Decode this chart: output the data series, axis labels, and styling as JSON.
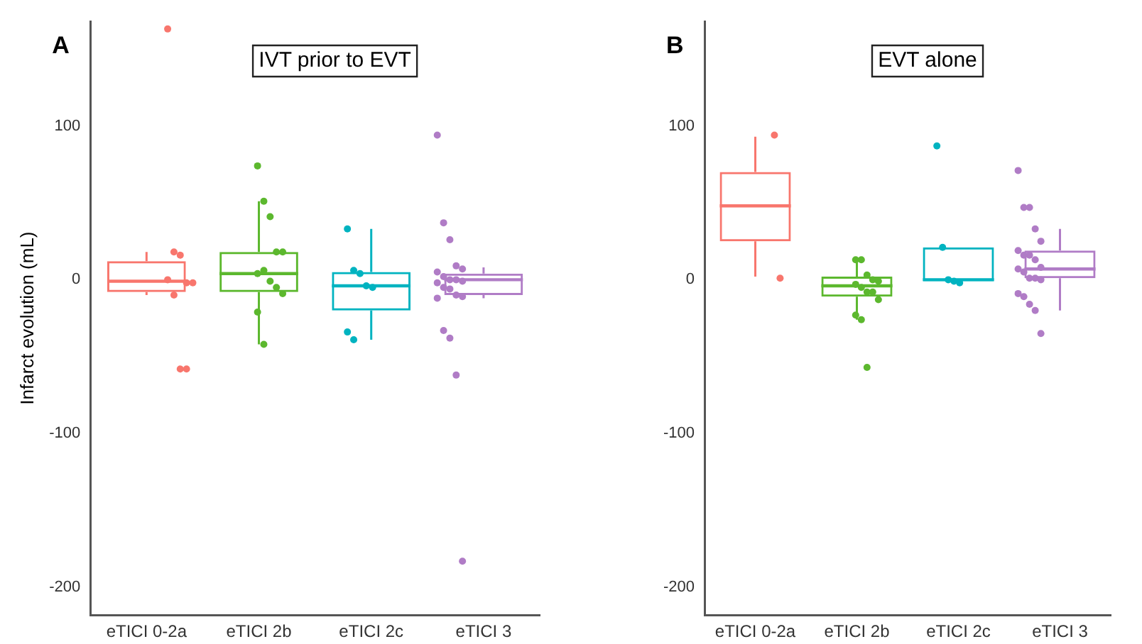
{
  "chart_data": [
    {
      "type": "box",
      "title": "IVT prior to EVT",
      "ylabel": "Infarct evolution (mL)",
      "annotations": [
        "A"
      ],
      "categories": [
        "eTICI 0-2a",
        "eTICI 2b",
        "eTICI 2c",
        "eTICI 3"
      ],
      "colors": [
        "#f8766d",
        "#5cb82e",
        "#00b3c0",
        "#b07cc6"
      ],
      "boxes": [
        {
          "low": -10,
          "q1": -8,
          "median": -1,
          "q3": 12,
          "high": 18
        },
        {
          "low": -42,
          "q1": -8,
          "median": 4,
          "q3": 18,
          "high": 51
        },
        {
          "low": -39,
          "q1": -20,
          "median": -4,
          "q3": 5,
          "high": 33
        },
        {
          "low": -12,
          "q1": -10,
          "median": 0,
          "q3": 4,
          "high": 8
        }
      ],
      "series": [
        {
          "type": "scatter",
          "color": "#f8766d",
          "x": [
            "eTICI 0-2a",
            "eTICI 0-2a",
            "eTICI 0-2a",
            "eTICI 0-2a",
            "eTICI 0-2a",
            "eTICI 0-2a",
            "eTICI 0-2a",
            "eTICI 0-2a",
            "eTICI 0-2a"
          ],
          "values": [
            163,
            18,
            16,
            -2,
            -2,
            0,
            -10,
            -58,
            -58
          ]
        },
        {
          "type": "scatter",
          "color": "#5cb82e",
          "x": [
            "eTICI 2b",
            "eTICI 2b",
            "eTICI 2b",
            "eTICI 2b",
            "eTICI 2b",
            "eTICI 2b",
            "eTICI 2b",
            "eTICI 2b",
            "eTICI 2b",
            "eTICI 2b",
            "eTICI 2b",
            "eTICI 2b"
          ],
          "values": [
            74,
            51,
            41,
            18,
            18,
            4,
            6,
            -1,
            -5,
            -9,
            -21,
            -42
          ]
        },
        {
          "type": "scatter",
          "color": "#00b3c0",
          "x": [
            "eTICI 2c",
            "eTICI 2c",
            "eTICI 2c",
            "eTICI 2c",
            "eTICI 2c",
            "eTICI 2c",
            "eTICI 2c"
          ],
          "values": [
            33,
            6,
            4,
            -4,
            -5,
            -34,
            -39
          ]
        },
        {
          "type": "scatter",
          "color": "#b07cc6",
          "x": [
            "eTICI 3",
            "eTICI 3",
            "eTICI 3",
            "eTICI 3",
            "eTICI 3",
            "eTICI 3",
            "eTICI 3",
            "eTICI 3",
            "eTICI 3",
            "eTICI 3",
            "eTICI 3",
            "eTICI 3",
            "eTICI 3",
            "eTICI 3",
            "eTICI 3",
            "eTICI 3",
            "eTICI 3",
            "eTICI 3",
            "eTICI 3",
            "eTICI 3"
          ],
          "values": [
            94,
            37,
            26,
            9,
            7,
            5,
            2,
            0,
            0,
            -1,
            -2,
            -5,
            -6,
            -10,
            -11,
            -12,
            -33,
            -38,
            -62,
            -183
          ]
        }
      ],
      "ylim": [
        -218,
        168
      ],
      "yticks": [
        -200,
        -100,
        0,
        100
      ],
      "grid": false,
      "legend": false,
      "marker": "circle"
    },
    {
      "type": "box",
      "title": "EVT alone",
      "annotations": [
        "B"
      ],
      "categories": [
        "eTICI 0-2a",
        "eTICI 2b",
        "eTICI 2c",
        "eTICI 3"
      ],
      "colors": [
        "#f8766d",
        "#5cb82e",
        "#00b3c0",
        "#b07cc6"
      ],
      "boxes": [
        {
          "low": 2,
          "q1": 25,
          "median": 48,
          "q3": 70,
          "high": 93
        },
        {
          "low": -26,
          "q1": -11,
          "median": -4,
          "q3": 2,
          "high": 13
        },
        {
          "low": -2,
          "q1": -1,
          "median": 0,
          "q3": 21,
          "high": 21
        },
        {
          "low": -20,
          "q1": 1,
          "median": 7,
          "q3": 19,
          "high": 33
        }
      ],
      "series": [
        {
          "type": "scatter",
          "color": "#f8766d",
          "x": [
            "eTICI 0-2a",
            "eTICI 0-2a"
          ],
          "values": [
            94,
            1
          ]
        },
        {
          "type": "scatter",
          "color": "#5cb82e",
          "x": [
            "eTICI 2b",
            "eTICI 2b",
            "eTICI 2b",
            "eTICI 2b",
            "eTICI 2b",
            "eTICI 2b",
            "eTICI 2b",
            "eTICI 2b",
            "eTICI 2b",
            "eTICI 2b",
            "eTICI 2b",
            "eTICI 2b",
            "eTICI 2b"
          ],
          "values": [
            13,
            13,
            3,
            0,
            -1,
            -3,
            -5,
            -8,
            -8,
            -13,
            -23,
            -26,
            -57
          ]
        },
        {
          "type": "scatter",
          "color": "#00b3c0",
          "x": [
            "eTICI 2c",
            "eTICI 2c",
            "eTICI 2c",
            "eTICI 2c",
            "eTICI 2c"
          ],
          "values": [
            87,
            21,
            0,
            -1,
            -2
          ]
        },
        {
          "type": "scatter",
          "color": "#b07cc6",
          "x": [
            "eTICI 3",
            "eTICI 3",
            "eTICI 3",
            "eTICI 3",
            "eTICI 3",
            "eTICI 3",
            "eTICI 3",
            "eTICI 3",
            "eTICI 3",
            "eTICI 3",
            "eTICI 3",
            "eTICI 3",
            "eTICI 3",
            "eTICI 3",
            "eTICI 3",
            "eTICI 3",
            "eTICI 3",
            "eTICI 3",
            "eTICI 3",
            "eTICI 3"
          ],
          "values": [
            71,
            47,
            47,
            33,
            25,
            19,
            16,
            16,
            13,
            8,
            7,
            5,
            1,
            1,
            0,
            -9,
            -11,
            -16,
            -20,
            -35
          ]
        }
      ],
      "ylim": [
        -218,
        168
      ],
      "yticks": [
        -200,
        -100,
        0,
        100
      ],
      "grid": false,
      "legend": false,
      "marker": "circle"
    }
  ]
}
